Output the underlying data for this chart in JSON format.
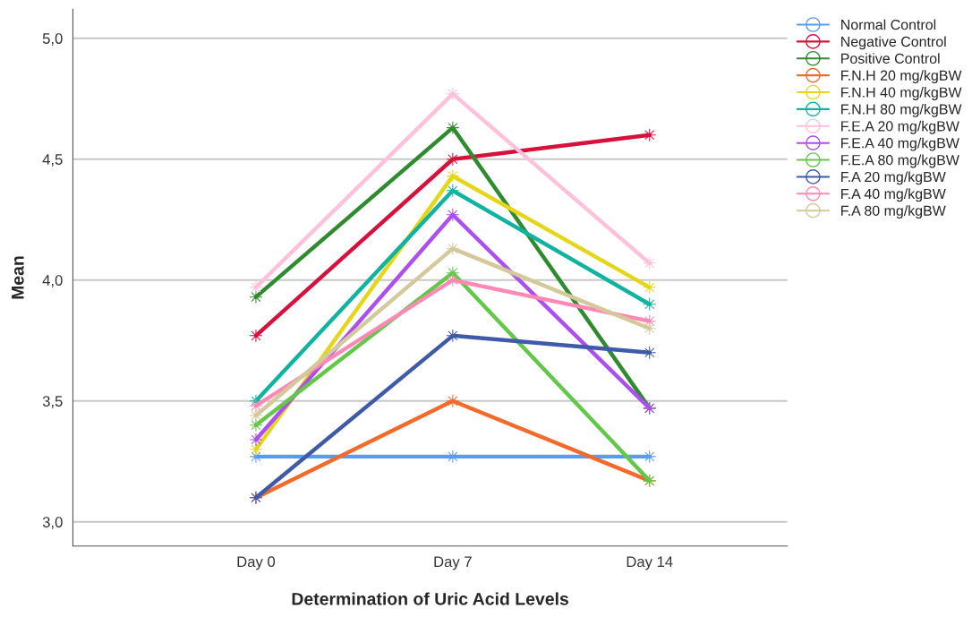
{
  "chart_data": {
    "type": "line",
    "xlabel": "Determination of Uric Acid Levels",
    "ylabel": "Mean",
    "categories": [
      "Day 0",
      "Day 7",
      "Day 14"
    ],
    "ylim": [
      2.9,
      5.12
    ],
    "yticks": [
      {
        "value": 3.0,
        "label": "3,0"
      },
      {
        "value": 3.5,
        "label": "3,5"
      },
      {
        "value": 4.0,
        "label": "4,0"
      },
      {
        "value": 4.5,
        "label": "4,5"
      },
      {
        "value": 5.0,
        "label": "5,0"
      }
    ],
    "grid": "y",
    "legend": "right",
    "marker": "star",
    "line_style": "solid",
    "series": [
      {
        "name": "Normal Control",
        "color": "#5b9bef",
        "values": [
          3.27,
          3.27,
          3.27
        ]
      },
      {
        "name": "Negative Control",
        "color": "#d8103c",
        "values": [
          3.77,
          4.5,
          4.6
        ]
      },
      {
        "name": "Positive Control",
        "color": "#2e8b2e",
        "values": [
          3.93,
          4.63,
          3.47
        ]
      },
      {
        "name": "F.N.H 20 mg/kgBW",
        "color": "#f36b2b",
        "values": [
          3.1,
          3.5,
          3.17
        ]
      },
      {
        "name": "F.N.H 40 mg/kgBW",
        "color": "#e6d619",
        "values": [
          3.3,
          4.43,
          3.97
        ]
      },
      {
        "name": "F.N.H 80 mg/kgBW",
        "color": "#10b3a0",
        "values": [
          3.5,
          4.37,
          3.9
        ]
      },
      {
        "name": "F.E.A 20 mg/kgBW",
        "color": "#ffc0dc",
        "values": [
          3.97,
          4.77,
          4.07
        ]
      },
      {
        "name": "F.E.A 40 mg/kgBW",
        "color": "#ad4ff0",
        "values": [
          3.34,
          4.27,
          3.47
        ]
      },
      {
        "name": "F.E.A 80 mg/kgBW",
        "color": "#63c84a",
        "values": [
          3.4,
          4.03,
          3.17
        ]
      },
      {
        "name": "F.A 20 mg/kgBW",
        "color": "#3f5aa8",
        "values": [
          3.1,
          3.77,
          3.7
        ]
      },
      {
        "name": "F.A 40 mg/kgBW",
        "color": "#ff88b5",
        "values": [
          3.48,
          4.0,
          3.83
        ]
      },
      {
        "name": "F.A 80 mg/kgBW",
        "color": "#d4c99a",
        "values": [
          3.44,
          4.13,
          3.8
        ]
      }
    ]
  }
}
